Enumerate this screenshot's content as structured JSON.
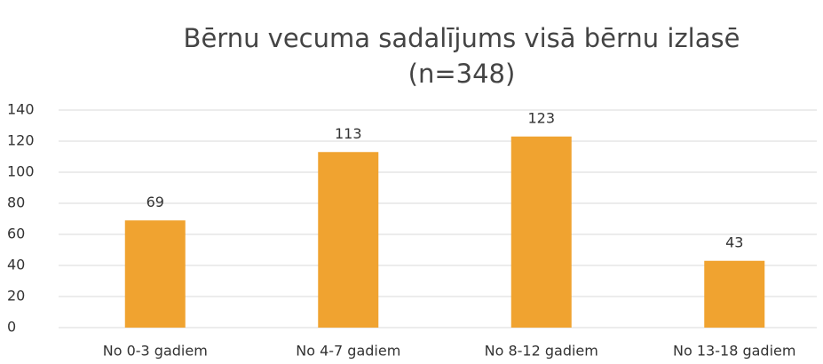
{
  "chart_data": {
    "type": "bar",
    "title": [
      "Bērnu vecuma sadalījums visā bērnu izlasē",
      "(n=348)"
    ],
    "categories": [
      "No 0-3 gadiem",
      "No 4-7 gadiem",
      "No 8-12 gadiem",
      "No 13-18 gadiem"
    ],
    "values": [
      69,
      113,
      123,
      43
    ],
    "color": "#f0a330",
    "ylim": [
      0,
      140
    ],
    "yticks": [
      0,
      20,
      40,
      60,
      80,
      100,
      120,
      140
    ],
    "grid": true
  }
}
